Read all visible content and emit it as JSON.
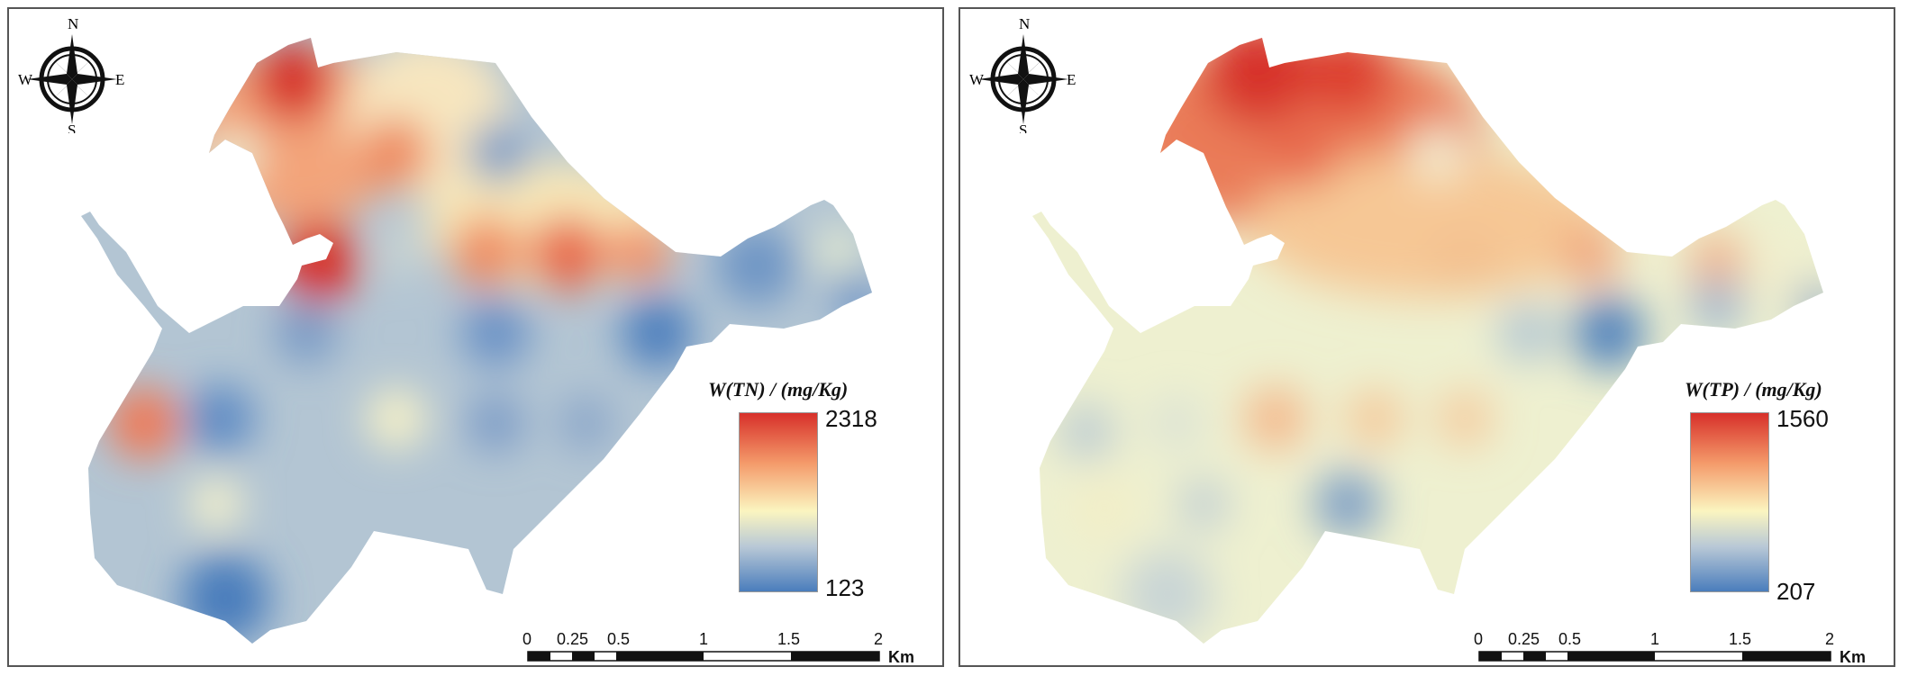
{
  "panels": [
    {
      "id": "tn",
      "legend_title": "W(TN) / (mg/Kg)",
      "legend_max": "2318",
      "legend_min": "123",
      "compass": {
        "n": "N",
        "s": "S",
        "e": "E",
        "w": "W"
      },
      "scale": {
        "ticks": [
          "0",
          "0.25",
          "0.5",
          "1",
          "1.5",
          "2"
        ],
        "unit": "Km"
      }
    },
    {
      "id": "tp",
      "legend_title": "W(TP) / (mg/Kg)",
      "legend_max": "1560",
      "legend_min": "207",
      "compass": {
        "n": "N",
        "s": "S",
        "e": "E",
        "w": "W"
      },
      "scale": {
        "ticks": [
          "0",
          "0.25",
          "0.5",
          "1",
          "1.5",
          "2"
        ],
        "unit": "Km"
      }
    }
  ],
  "colors": {
    "high": "#d7302a",
    "mid_high": "#f49a6a",
    "mid": "#fbf5c0",
    "mid_low": "#b8c8d6",
    "low": "#4a7dbc"
  }
}
